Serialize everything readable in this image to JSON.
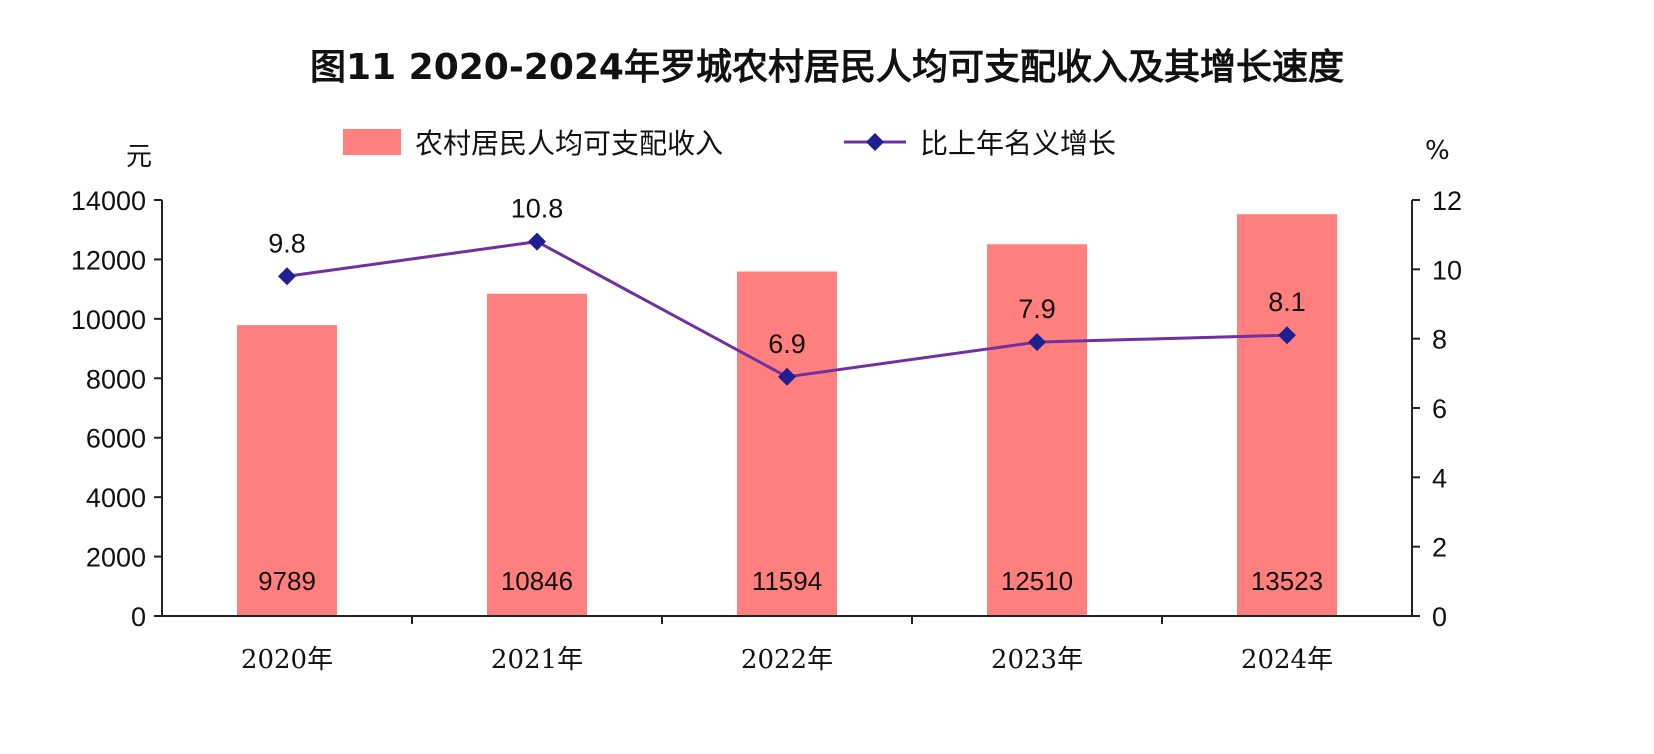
{
  "chart_data": {
    "type": "bar",
    "title": "图11 2020-2024年罗城农村居民人均可支配收入及其增长速度",
    "categories": [
      "2020年",
      "2021年",
      "2022年",
      "2023年",
      "2024年"
    ],
    "series": [
      {
        "name": "农村居民人均可支配收入",
        "type": "bar",
        "axis": "left",
        "color": "#FF7F7F",
        "values": [
          9789,
          10846,
          11594,
          12510,
          13523
        ]
      },
      {
        "name": "比上年名义增长",
        "type": "line",
        "axis": "right",
        "color": "#7030A0",
        "marker_color": "#1F1F8F",
        "values": [
          9.8,
          10.8,
          6.9,
          7.9,
          8.1
        ]
      }
    ],
    "y_left": {
      "unit": "元",
      "ylim": [
        0,
        14000
      ],
      "ticks": [
        0,
        2000,
        4000,
        6000,
        8000,
        10000,
        12000,
        14000
      ]
    },
    "y_right": {
      "unit": "%",
      "ylim": [
        0,
        12
      ],
      "ticks": [
        0,
        2,
        4,
        6,
        8,
        10,
        12
      ]
    },
    "legend_position": "top",
    "grid": false
  }
}
